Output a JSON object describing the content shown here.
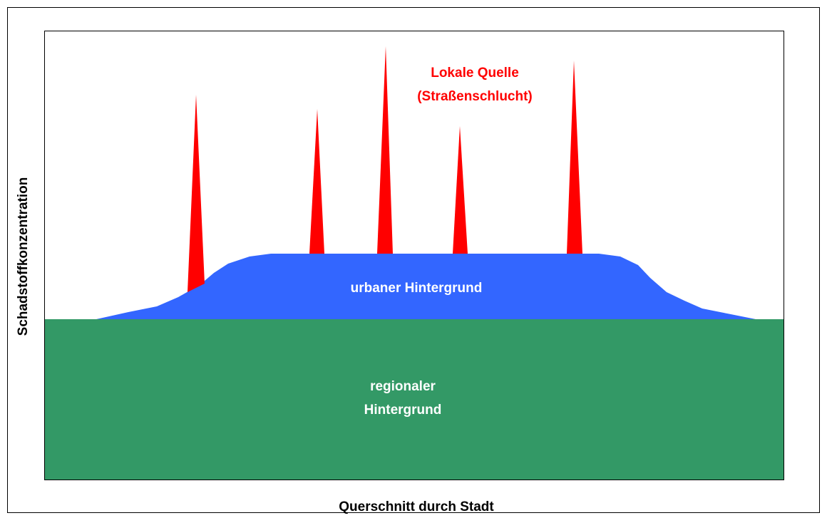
{
  "diagram": {
    "local_source": {
      "line1": "Lokale Quelle",
      "line2": "(Straßenschlucht)"
    },
    "urban_background": "urbaner Hintergrund",
    "regional_background": {
      "line1": "regionaler",
      "line2": "Hintergrund"
    },
    "y_axis_label": "Schadstoffkonzentration",
    "x_axis_label": "Querschnitt durch Stadt"
  }
}
